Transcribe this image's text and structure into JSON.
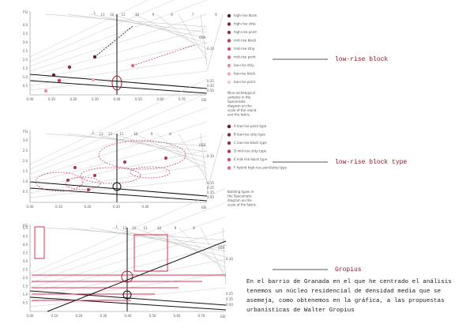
{
  "diagrams": [
    {
      "y_label": "FSI",
      "x_label": "GSI",
      "osr_label": "OSR",
      "l_label": "L",
      "l_ticks": [
        "13",
        "12",
        "11",
        "10",
        "9",
        "8",
        "7",
        "6"
      ],
      "x_ticks": [
        "0.00",
        "0.10",
        "0.20",
        "0.30",
        "0.40",
        "0.50",
        "0.60",
        "0.70"
      ],
      "y_ticks": [
        "4.0",
        "3.5",
        "3.0",
        "2.5",
        "2.0",
        "1.5",
        "1.0",
        "0.5"
      ],
      "osr_ticks": [
        "0.10",
        "0.25",
        "0.35",
        "0.50"
      ],
      "legend": [
        "high-rise block",
        "high-rise strip",
        "high-rise point",
        "mid-rise block",
        "mid-rise strip",
        "mid-rise point",
        "low-rise strip",
        "low-rise block",
        "low-rise point"
      ],
      "caption": [
        "Nine archetypical",
        "samples in the",
        "Spacemate",
        "diagram on the",
        "scale of the island",
        "and the fabric."
      ]
    },
    {
      "y_label": "FSI",
      "x_label": "GSI",
      "osr_label": "OSR",
      "l_label": "L",
      "l_ticks": [
        "13",
        "12",
        "11",
        "10",
        "9",
        "8"
      ],
      "x_ticks": [
        "0.00",
        "0.10",
        "0.20",
        "0.30",
        "0.40"
      ],
      "y_ticks": [
        "3.0",
        "2.5",
        "2.0",
        "1.5",
        "1.0",
        "0.5"
      ],
      "osr_ticks": [
        "0.10",
        "0.15",
        "0.25",
        "0.35",
        "0.50"
      ],
      "legend": [
        "A  low-rise point type",
        "B  low-rise strip type",
        "C  low-rise block type",
        "D  mid-rise strip type",
        "E  mid-rise block type",
        "F  hybrid high-rise point/strip type"
      ],
      "caption": [
        "Building types in",
        "the Spacemate",
        "diagram on the",
        "scale of the fabric."
      ]
    },
    {
      "y_label": "FSI",
      "x_label": "GSI",
      "osr_label": "OSR",
      "l_label": "L",
      "l_ticks": [
        "13",
        "12",
        "11",
        "10",
        "9",
        "8"
      ],
      "x_ticks": [
        "0.00",
        "0.10",
        "0.20",
        "0.30",
        "0.40",
        "0.50",
        "0.60",
        "0.70"
      ],
      "y_ticks": [
        "5.0",
        "4.5",
        "4.0",
        "3.5",
        "3.0",
        "2.5",
        "2.0",
        "1.5",
        "1.0",
        "0.5"
      ],
      "osr_ticks": [
        "0.10",
        "0.25",
        "0.35",
        "0.50"
      ],
      "legend": [],
      "caption": []
    }
  ],
  "annotations": [
    "low-rise block",
    "low-rise block type",
    "Gropius"
  ],
  "paragraph": [
    "En el barrio de Granada en el que he centrado el análisis",
    "tenemos un núcleo residencial de densidad media que se",
    "asemeja, como obtenemos en la gráfica, a las propuestas",
    "urbanísticas de Walter Gropius"
  ]
}
